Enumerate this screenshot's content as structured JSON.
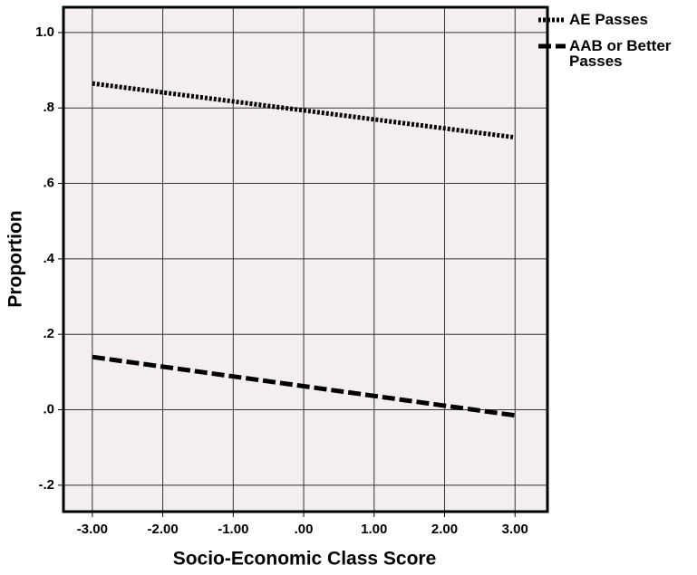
{
  "chart_data": {
    "type": "line",
    "x_label": "Socio-Economic Class Score",
    "y_label": "Proportion",
    "xlim": [
      -3.41,
      3.46
    ],
    "ylim": [
      -0.27,
      1.067
    ],
    "xticks": [
      {
        "value": -3,
        "label": "-3.00"
      },
      {
        "value": -2,
        "label": "-2.00"
      },
      {
        "value": -1,
        "label": "-1.00"
      },
      {
        "value": 0,
        "label": ".00"
      },
      {
        "value": 1,
        "label": "1.00"
      },
      {
        "value": 2,
        "label": "2.00"
      },
      {
        "value": 3,
        "label": "3.00"
      }
    ],
    "yticks": [
      {
        "value": -0.2,
        "label": "-.2"
      },
      {
        "value": 0,
        "label": ".0"
      },
      {
        "value": 0.2,
        "label": ".2"
      },
      {
        "value": 0.4,
        "label": ".4"
      },
      {
        "value": 0.6,
        "label": ".6"
      },
      {
        "value": 0.8,
        "label": ".8"
      },
      {
        "value": 1.0,
        "label": "1.0"
      }
    ],
    "grid": true,
    "background": "#f4eef0",
    "series": [
      {
        "name": "AE Passes",
        "color": "#000000",
        "dash": "dotted",
        "x": [
          -3,
          3
        ],
        "values": [
          0.865,
          0.722
        ]
      },
      {
        "name": "AAB or Better Passes",
        "color": "#000000",
        "dash": "dashed",
        "x": [
          -3,
          3
        ],
        "values": [
          0.14,
          -0.015
        ]
      }
    ]
  }
}
